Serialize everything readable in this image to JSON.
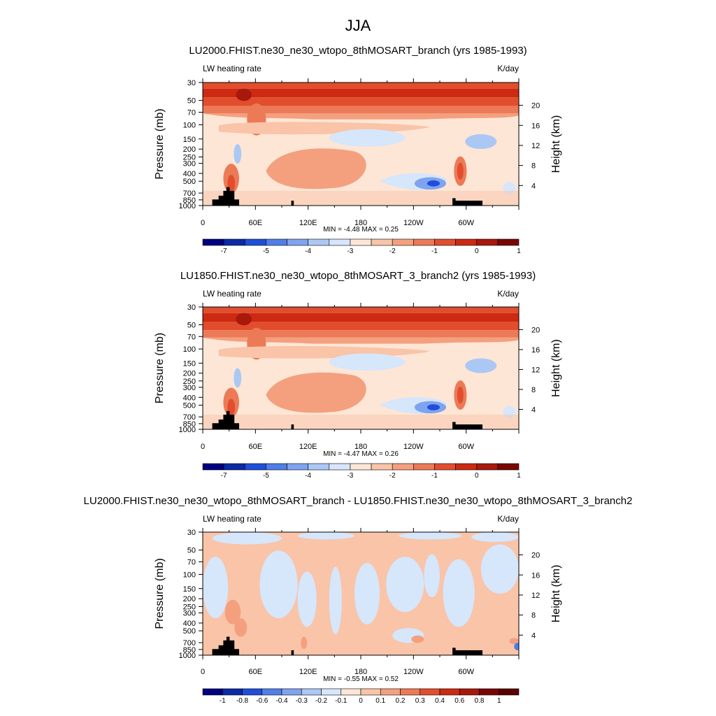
{
  "figure": {
    "title": "JJA"
  },
  "chart_data": [
    {
      "type": "heatmap",
      "title": "LU2000.FHIST.ne30_ne30_wtopo_8thMOSART_branch (yrs 1985-1993)",
      "left_label": "LW heating rate",
      "right_label": "K/day",
      "xlabel": "",
      "ylabel": "Pressure (mb)",
      "ylabel_right": "Height (km)",
      "x_ticks": [
        "0",
        "60E",
        "120E",
        "180",
        "120W",
        "60W"
      ],
      "y_ticks": [
        "30",
        "50",
        "70",
        "100",
        "150",
        "200",
        "250",
        "300",
        "400",
        "500",
        "700",
        "850",
        "1000"
      ],
      "y_right_ticks": [
        "20",
        "16",
        "12",
        "8",
        "4"
      ],
      "stats": "MIN =  -4.48  MAX =   0.25",
      "colorbar": {
        "labels": [
          "-7",
          "-5",
          "-4",
          "-3",
          "-2",
          "-1",
          "0",
          "1"
        ],
        "colors": [
          "#00007f",
          "#0b2aa6",
          "#1f4fd9",
          "#4f7fe6",
          "#7fa4ef",
          "#abc8f5",
          "#d6e6fb",
          "#fde6d6",
          "#f9c4a8",
          "#f4a07f",
          "#ec7a57",
          "#e24e2d",
          "#cc2a12",
          "#a8180b",
          "#7a0603"
        ]
      }
    },
    {
      "type": "heatmap",
      "title": "LU1850.FHIST.ne30_ne30_wtopo_8thMOSART_3_branch2 (yrs 1985-1993)",
      "left_label": "LW heating rate",
      "right_label": "K/day",
      "xlabel": "",
      "ylabel": "Pressure (mb)",
      "ylabel_right": "Height (km)",
      "x_ticks": [
        "0",
        "60E",
        "120E",
        "180",
        "120W",
        "60W"
      ],
      "y_ticks": [
        "30",
        "50",
        "70",
        "100",
        "150",
        "200",
        "250",
        "300",
        "400",
        "500",
        "700",
        "850",
        "1000"
      ],
      "y_right_ticks": [
        "20",
        "16",
        "12",
        "8",
        "4"
      ],
      "stats": "MIN =  -4.47  MAX =   0.26",
      "colorbar": {
        "labels": [
          "-7",
          "-5",
          "-4",
          "-3",
          "-2",
          "-1",
          "0",
          "1"
        ],
        "colors": [
          "#00007f",
          "#0b2aa6",
          "#1f4fd9",
          "#4f7fe6",
          "#7fa4ef",
          "#abc8f5",
          "#d6e6fb",
          "#fde6d6",
          "#f9c4a8",
          "#f4a07f",
          "#ec7a57",
          "#e24e2d",
          "#cc2a12",
          "#a8180b",
          "#7a0603"
        ]
      }
    },
    {
      "type": "heatmap",
      "title": "LU2000.FHIST.ne30_ne30_wtopo_8thMOSART_branch - LU1850.FHIST.ne30_ne30_wtopo_8thMOSART_3_branch2",
      "left_label": "LW heating rate",
      "right_label": "K/day",
      "xlabel": "",
      "ylabel": "Pressure (mb)",
      "ylabel_right": "Height (km)",
      "x_ticks": [
        "0",
        "60E",
        "120E",
        "180",
        "120W",
        "60W"
      ],
      "y_ticks": [
        "30",
        "50",
        "70",
        "100",
        "150",
        "200",
        "250",
        "300",
        "400",
        "500",
        "700",
        "850",
        "1000"
      ],
      "y_right_ticks": [
        "20",
        "16",
        "12",
        "8",
        "4"
      ],
      "stats": "MIN =  -0.55  MAX =   0.52",
      "colorbar": {
        "labels": [
          "-1",
          "-0.8",
          "-0.6",
          "-0.4",
          "-0.3",
          "-0.2",
          "-0.1",
          "0",
          "0.1",
          "0.2",
          "0.3",
          "0.4",
          "0.6",
          "0.8",
          "1"
        ],
        "colors": [
          "#00007f",
          "#0b2aa6",
          "#1f4fd9",
          "#4f7fe6",
          "#7fa4ef",
          "#abc8f5",
          "#d6e6fb",
          "#fde6d6",
          "#f9c4a8",
          "#f4a07f",
          "#ec7a57",
          "#e24e2d",
          "#cc2a12",
          "#a8180b",
          "#7a0603",
          "#5a0000"
        ]
      }
    }
  ]
}
